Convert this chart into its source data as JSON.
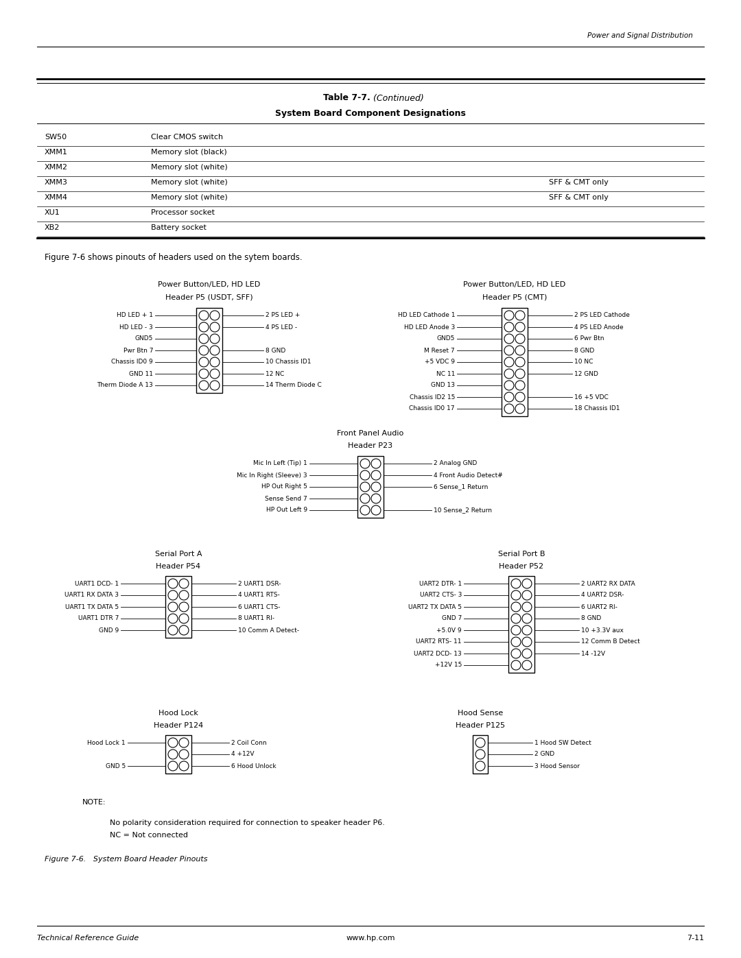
{
  "page_header": "Power and Signal Distribution",
  "table_title_bold": "Table 7-7.",
  "table_title_italic": " (Continued)",
  "table_title_line2": "System Board Component Designations",
  "table_rows": [
    [
      "SW50",
      "Clear CMOS switch",
      ""
    ],
    [
      "XMM1",
      "Memory slot (black)",
      ""
    ],
    [
      "XMM2",
      "Memory slot (white)",
      ""
    ],
    [
      "XMM3",
      "Memory slot (white)",
      "SFF & CMT only"
    ],
    [
      "XMM4",
      "Memory slot (white)",
      "SFF & CMT only"
    ],
    [
      "XU1",
      "Processor socket",
      ""
    ],
    [
      "XB2",
      "Battery socket",
      ""
    ]
  ],
  "figure_intro": "Figure 7-6 shows pinouts of headers used on the sytem boards.",
  "note_line1": "No polarity consideration required for connection to speaker header P6.",
  "note_line2": "NC = Not connected",
  "figure_caption": "Figure 7-6.   System Board Header Pinouts",
  "footer_left": "Technical Reference Guide",
  "footer_center": "www.hp.com",
  "footer_right": "7-11"
}
